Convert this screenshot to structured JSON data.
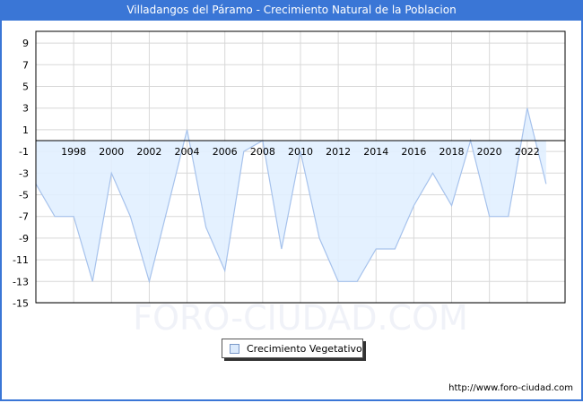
{
  "header": {
    "title": "Villadangos del Páramo - Crecimiento Natural de la Poblacion"
  },
  "watermark": "FORO-CIUDAD.COM",
  "legend": {
    "label": "Crecimiento Vegetativo",
    "swatch_color": "#dbeafc",
    "line_color": "#a0bde8"
  },
  "footer": {
    "url": "http://www.foro-ciudad.com"
  },
  "colors": {
    "header_bg": "#3a76d6",
    "fill": "#e1efff",
    "line": "#a6c2ec",
    "grid": "#d8d8d8"
  },
  "chart_data": {
    "type": "area",
    "title": "Villadangos del Páramo - Crecimiento Natural de la Poblacion",
    "xlabel": "",
    "ylabel": "",
    "x": [
      1996,
      1997,
      1998,
      1999,
      2000,
      2001,
      2002,
      2003,
      2004,
      2005,
      2006,
      2007,
      2008,
      2009,
      2010,
      2011,
      2012,
      2013,
      2014,
      2015,
      2016,
      2017,
      2018,
      2019,
      2020,
      2021,
      2022,
      2023
    ],
    "series": [
      {
        "name": "Crecimiento Vegetativo",
        "values": [
          -4,
          -7,
          -7,
          -13,
          -3,
          -7,
          -13,
          -6,
          1,
          -8,
          -12,
          -1,
          0,
          -10,
          -1,
          -9,
          -13,
          -13,
          -10,
          -10,
          -6,
          -3,
          -6,
          0,
          -7,
          -7,
          3,
          -4
        ]
      }
    ],
    "x_tick_labels": [
      "1998",
      "2000",
      "2002",
      "2004",
      "2006",
      "2008",
      "2010",
      "2012",
      "2014",
      "2016",
      "2018",
      "2020",
      "2022"
    ],
    "y_tick_labels": [
      "9",
      "7",
      "5",
      "3",
      "1",
      "-1",
      "-3",
      "-5",
      "-7",
      "-9",
      "-11",
      "-13",
      "-15"
    ],
    "ylim": [
      -15,
      10
    ],
    "xlim": [
      1996,
      2024
    ],
    "grid": true,
    "legend_position": "bottom-center"
  }
}
